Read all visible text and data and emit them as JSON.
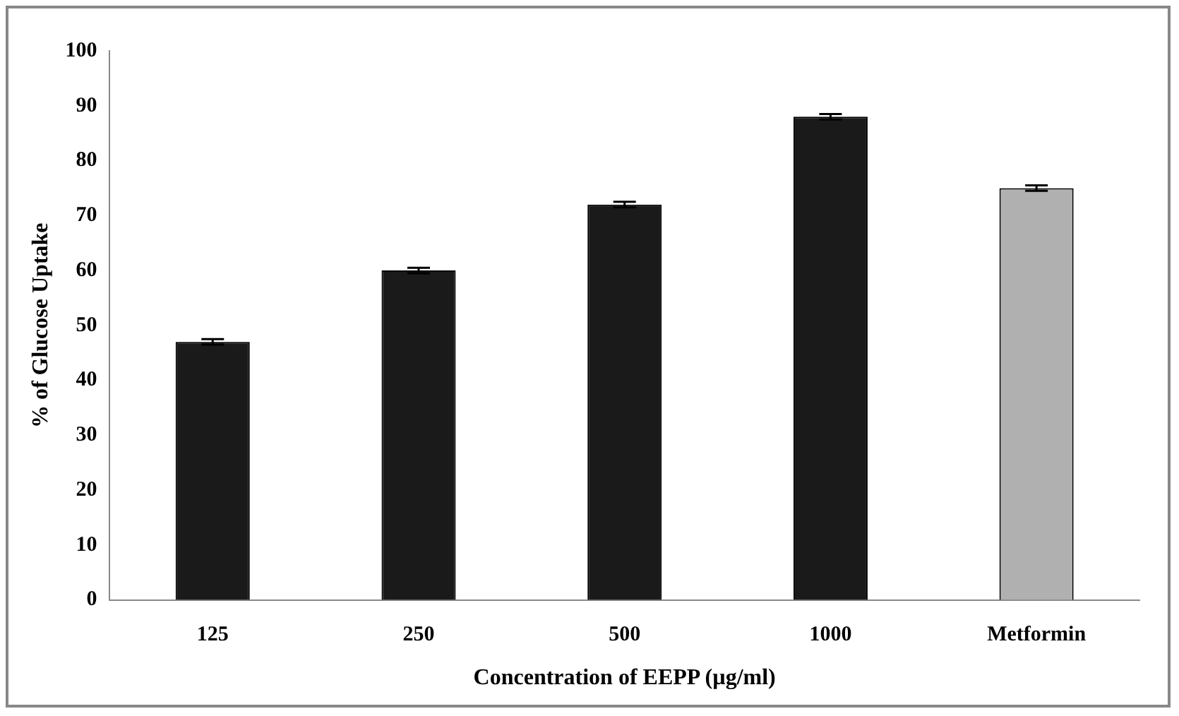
{
  "chart_data": {
    "type": "bar",
    "xlabel": "Concentration of EEPP (µg/ml)",
    "ylabel": "% of Glucose Uptake",
    "categories": [
      "125",
      "250",
      "500",
      "1000",
      "Metformin"
    ],
    "values": [
      47,
      60,
      72,
      88,
      75
    ],
    "errors": [
      0.5,
      0.5,
      0.5,
      0.5,
      0.5
    ],
    "colors": [
      "#1a1a1a",
      "#1a1a1a",
      "#1a1a1a",
      "#1a1a1a",
      "#b0b0b0"
    ],
    "ylim": [
      0,
      100
    ],
    "yticks": [
      0,
      10,
      20,
      30,
      40,
      50,
      60,
      70,
      80,
      90,
      100
    ],
    "grid": false,
    "legend": false
  }
}
